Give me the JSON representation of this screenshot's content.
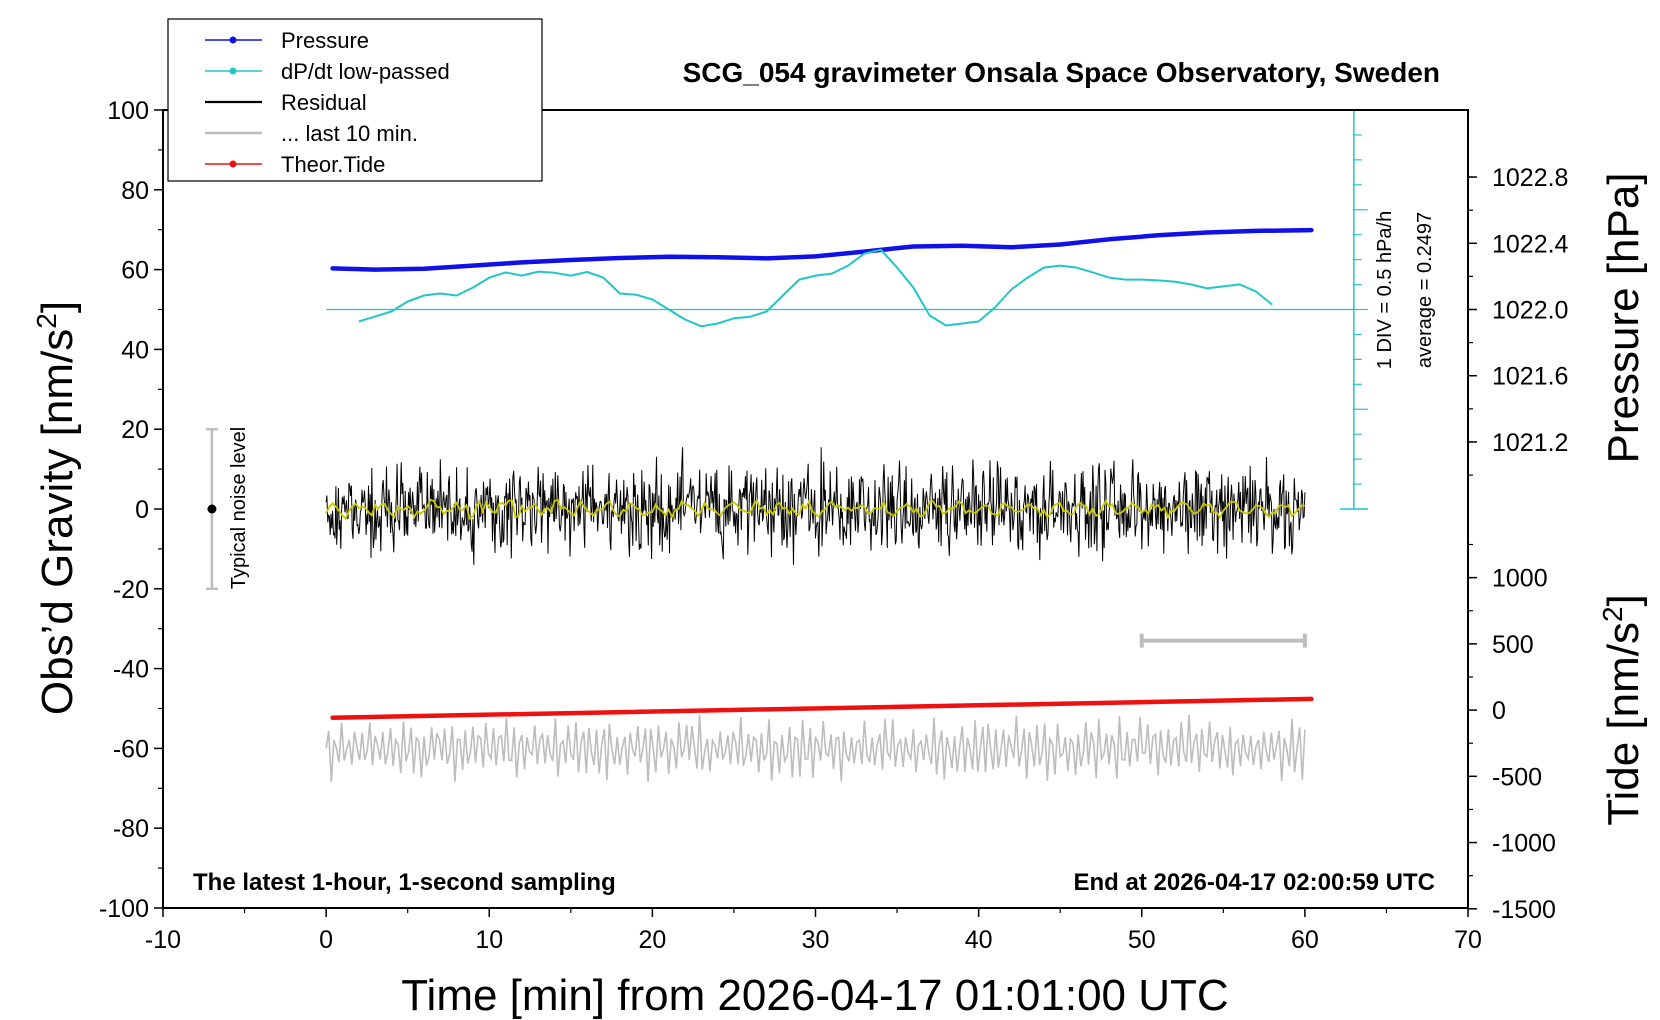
{
  "chart_data": {
    "type": "line",
    "title": "SCG_054 gravimeter Onsala Space Observatory, Sweden",
    "xlabel": "Time [min] from 2026-04-17 01:01:00 UTC",
    "ylabel_left": "Obs’d Gravity [nm/s",
    "ylabel_left_sup": "2",
    "ylabel_left_end": "]",
    "ylabel_right_pressure": "Pressure [hPa]",
    "ylabel_right_tide": "Tide [nm/s",
    "ylabel_right_tide_sup": "2",
    "ylabel_right_tide_end": "]",
    "xlim": [
      -10,
      70
    ],
    "ylim": [
      -100,
      100
    ],
    "x_ticks": [
      -10,
      0,
      10,
      20,
      30,
      40,
      50,
      60,
      70
    ],
    "y_ticks": [
      -100,
      -80,
      -60,
      -40,
      -20,
      0,
      20,
      40,
      60,
      80,
      100
    ],
    "pressure_axis": {
      "ticks": [
        "1022.8",
        "1022.4",
        "1022.0",
        "1021.6",
        "1021.2"
      ],
      "tick_values": [
        1022.8,
        1022.4,
        1022.0,
        1021.6,
        1021.2
      ]
    },
    "tide_axis": {
      "ticks": [
        "1000",
        "500",
        "0",
        "-500",
        "-1000",
        "-1500"
      ],
      "tick_values": [
        1000,
        500,
        0,
        -500,
        -1000,
        -1500
      ]
    },
    "legend": {
      "position": "top-left",
      "entries": [
        {
          "label": "Pressure",
          "color": "#1010e8",
          "marker": true
        },
        {
          "label": "dP/dt low-passed",
          "color": "#22c6c6",
          "marker": true
        },
        {
          "label": "Residual",
          "color": "#000000",
          "marker": false
        },
        {
          "label": "... last 10 min.",
          "color": "#bdbdbd",
          "marker": false
        },
        {
          "label": "Theor.Tide",
          "color": "#ee1111",
          "marker": true
        }
      ]
    },
    "annotations": {
      "bottom_left": "The latest 1-hour, 1-second sampling",
      "bottom_right": "End at 2026-04-17 02:00:59 UTC",
      "div_label": "1 DIV = 0.5 hPa/h",
      "average_label": "average = 0.2497",
      "noise_label": "Typical noise level"
    },
    "noise_bar": {
      "x": -7,
      "center": 0,
      "low": -20,
      "high": 20
    },
    "ten_min_bar": {
      "x_start": 50,
      "x_end": 60,
      "y": -33
    },
    "series": [
      {
        "name": "Pressure",
        "color": "#1010e8",
        "x": [
          0.4,
          3,
          6,
          9,
          12,
          15,
          18,
          21,
          24,
          27,
          30,
          33,
          36,
          39,
          42,
          45,
          48,
          51,
          54,
          57,
          60.4
        ],
        "y": [
          60.3,
          60.0,
          60.2,
          61.0,
          61.8,
          62.4,
          62.9,
          63.2,
          63.1,
          62.8,
          63.3,
          64.5,
          65.8,
          66.0,
          65.6,
          66.3,
          67.6,
          68.6,
          69.3,
          69.7,
          69.9
        ]
      },
      {
        "name": "dP/dt low-passed",
        "color": "#22c6c6",
        "x": [
          2,
          4,
          5,
          6,
          7,
          8,
          9,
          10,
          11,
          12,
          13,
          14,
          15,
          16,
          17,
          18,
          19,
          20,
          21,
          22,
          23,
          24,
          25,
          26,
          27,
          28,
          29,
          30,
          31,
          32,
          33,
          34,
          35,
          36,
          37,
          38,
          39,
          40,
          41,
          42,
          43,
          44,
          45,
          46,
          47,
          48,
          49,
          50,
          51,
          52,
          53,
          54,
          55,
          56,
          57,
          58
        ],
        "y": [
          47.0,
          49.5,
          52.0,
          53.5,
          54.0,
          53.5,
          55.5,
          58.0,
          59.3,
          58.5,
          59.5,
          59.2,
          58.5,
          59.4,
          58.0,
          54.0,
          53.7,
          52.5,
          50.0,
          47.5,
          45.8,
          46.5,
          47.8,
          48.2,
          49.5,
          53.5,
          57.5,
          58.5,
          59.0,
          61.0,
          64.0,
          65.0,
          60.5,
          55.5,
          48.5,
          46.0,
          46.5,
          47.0,
          50.5,
          55.0,
          58.0,
          60.5,
          61.0,
          60.5,
          59.3,
          58.0,
          57.5,
          57.5,
          57.3,
          57.0,
          56.3,
          55.3,
          55.8,
          56.3,
          54.5,
          51.2
        ]
      },
      {
        "name": "Residual",
        "color": "#000000",
        "x_range": [
          0,
          60
        ],
        "amplitude": 9,
        "smooth_color": "#c9c900"
      },
      {
        "name": "... last 10 min.",
        "color": "#bdbdbd",
        "x_range": [
          0,
          60
        ],
        "center": -60,
        "amplitude": 8
      },
      {
        "name": "Theor.Tide",
        "color": "#ee1111",
        "x": [
          0.4,
          60.4
        ],
        "y": [
          -52.3,
          -47.6
        ]
      }
    ],
    "dpdt_baseline": 50,
    "div_scale_x": 63
  }
}
